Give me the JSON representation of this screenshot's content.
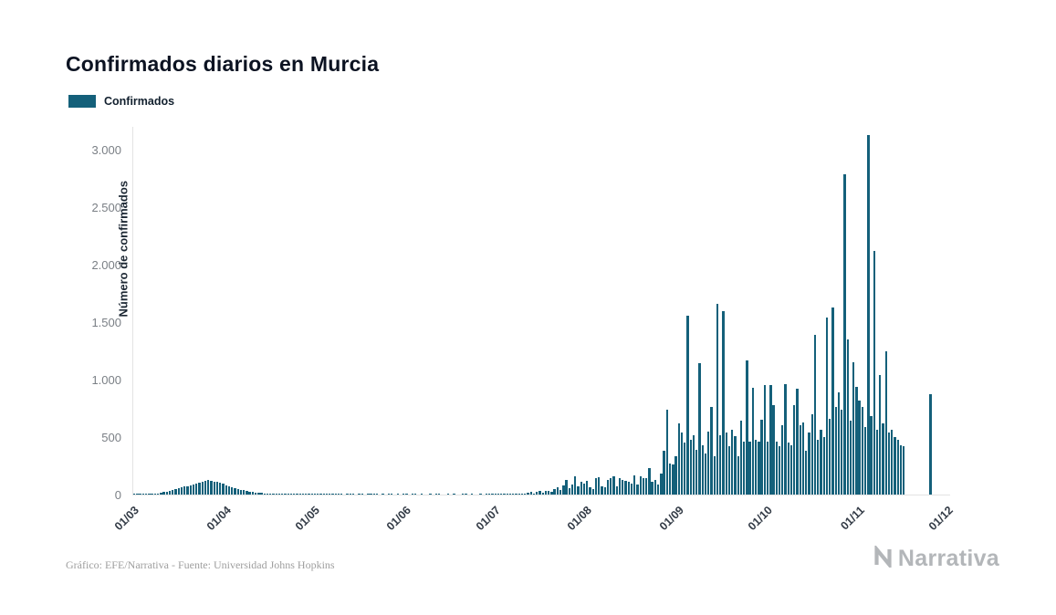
{
  "page": {
    "title": "Confirmados diarios en Murcia",
    "source": "Gráfico: EFE/Narrativa - Fuente: Universidad Johns Hopkins",
    "brand": "Narrativa"
  },
  "legend": {
    "label": "Confirmados",
    "color": "#14607a"
  },
  "chart_data": {
    "type": "bar",
    "title": "Confirmados diarios en Murcia",
    "xlabel": "",
    "ylabel": "Número de confirmados",
    "ylim": [
      0,
      3200
    ],
    "grid": false,
    "legend_position": "top-left",
    "bar_color": "#14607a",
    "series_name": "Confirmados",
    "date_range": {
      "start": "01/03",
      "end": "30/11",
      "frequency": "daily"
    },
    "y_ticks": [
      {
        "label": "0",
        "value": 0
      },
      {
        "label": "500",
        "value": 500
      },
      {
        "label": "1.000",
        "value": 1000
      },
      {
        "label": "1.500",
        "value": 1500
      },
      {
        "label": "2.000",
        "value": 2000
      },
      {
        "label": "2.500",
        "value": 2500
      },
      {
        "label": "3.000",
        "value": 3000
      }
    ],
    "x_ticks": [
      {
        "label": "01/03",
        "day": 0
      },
      {
        "label": "01/04",
        "day": 31
      },
      {
        "label": "01/05",
        "day": 61
      },
      {
        "label": "01/06",
        "day": 92
      },
      {
        "label": "01/07",
        "day": 122
      },
      {
        "label": "01/08",
        "day": 153
      },
      {
        "label": "01/09",
        "day": 184
      },
      {
        "label": "01/10",
        "day": 214
      },
      {
        "label": "01/11",
        "day": 245
      },
      {
        "label": "01/12",
        "day": 275
      }
    ],
    "values": [
      1,
      1,
      2,
      2,
      3,
      5,
      7,
      9,
      12,
      16,
      20,
      25,
      30,
      38,
      45,
      52,
      60,
      68,
      75,
      82,
      90,
      98,
      105,
      112,
      120,
      128,
      122,
      115,
      108,
      100,
      95,
      80,
      70,
      62,
      55,
      48,
      42,
      36,
      30,
      26,
      22,
      18,
      15,
      13,
      11,
      10,
      9,
      8,
      7,
      6,
      6,
      5,
      5,
      4,
      4,
      3,
      3,
      3,
      2,
      2,
      2,
      3,
      2,
      2,
      1,
      2,
      1,
      1,
      2,
      1,
      1,
      0,
      1,
      2,
      1,
      0,
      1,
      1,
      0,
      1,
      2,
      1,
      1,
      0,
      1,
      0,
      1,
      1,
      0,
      1,
      0,
      1,
      1,
      0,
      1,
      1,
      0,
      1,
      0,
      0,
      1,
      0,
      1,
      1,
      0,
      0,
      1,
      0,
      1,
      0,
      0,
      1,
      1,
      0,
      1,
      0,
      0,
      1,
      0,
      1,
      1,
      2,
      3,
      2,
      4,
      5,
      3,
      6,
      8,
      5,
      10,
      12,
      8,
      15,
      20,
      12,
      25,
      30,
      18,
      35,
      28,
      22,
      45,
      60,
      40,
      80,
      130,
      55,
      90,
      160,
      70,
      110,
      95,
      120,
      65,
      50,
      140,
      150,
      75,
      60,
      130,
      145,
      155,
      70,
      140,
      130,
      120,
      110,
      95,
      165,
      85,
      155,
      145,
      140,
      230,
      110,
      130,
      85,
      185,
      380,
      740,
      270,
      260,
      330,
      620,
      540,
      450,
      1560,
      480,
      520,
      390,
      1140,
      430,
      360,
      550,
      760,
      330,
      1660,
      520,
      1600,
      540,
      420,
      560,
      510,
      330,
      640,
      460,
      1170,
      460,
      930,
      480,
      460,
      650,
      950,
      460,
      950,
      780,
      460,
      420,
      600,
      960,
      450,
      430,
      780,
      920,
      600,
      630,
      380,
      540,
      700,
      1390,
      480,
      560,
      500,
      1540,
      660,
      1630,
      760,
      890,
      740,
      2790,
      1350,
      640,
      1150,
      940,
      820,
      760,
      590,
      3130,
      680,
      2120,
      560,
      1040,
      620,
      1250,
      540,
      560,
      500,
      480,
      430,
      420,
      0,
      0,
      0,
      0,
      0,
      0,
      0,
      0,
      870,
      0,
      0,
      0,
      0,
      0
    ]
  }
}
